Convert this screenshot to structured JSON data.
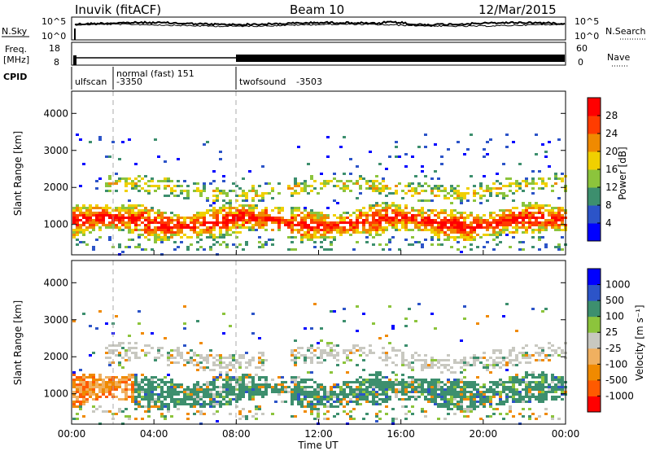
{
  "header": {
    "station": "Inuvik (fitACF)",
    "beam": "Beam 10",
    "date": "12/Mar/2015"
  },
  "noise_panel": {
    "left_label": "N.Sky",
    "right_label": "N.Search",
    "left_ticks": [
      "10^5",
      "10^0"
    ],
    "right_ticks": [
      "10^5",
      "10^0"
    ]
  },
  "freq_panel": {
    "left_label_line1": "Freq.",
    "left_label_line2": "[MHz]",
    "left_ticks": [
      "18",
      "8"
    ],
    "right_label": "Nave",
    "right_ticks": [
      "60",
      "0"
    ]
  },
  "cpid": {
    "label": "CPID",
    "segments": [
      {
        "start_hour": 0.0,
        "name": "ulfscan",
        "id": ""
      },
      {
        "start_hour": 2.0,
        "name": "normal (fast) 151",
        "id": "-3350"
      },
      {
        "start_hour": 8.0,
        "name": "twofsound",
        "id": "-3503"
      }
    ]
  },
  "chart_data": [
    {
      "type": "heatmap",
      "title": "",
      "ylabel": "Slant Range [km]",
      "xlabel": "",
      "x_range_hours": [
        0,
        24
      ],
      "ylim": [
        180,
        4600
      ],
      "y_ticks": [
        "1000",
        "2000",
        "3000",
        "4000"
      ],
      "colorbar": {
        "label": "Power [dB]",
        "ticks": [
          "28",
          "24",
          "20",
          "16",
          "12",
          "8",
          "4"
        ],
        "colors": [
          "#0000ff",
          "#2c54c8",
          "#3d8f6e",
          "#8cc43c",
          "#f0d000",
          "#f08a00",
          "#ff3c00",
          "#ff0000"
        ]
      },
      "features": {
        "main_band_km": [
          750,
          1600
        ],
        "secondary_band_km": [
          1700,
          2400
        ],
        "peak_power_db": 30
      }
    },
    {
      "type": "heatmap",
      "title": "",
      "ylabel": "Slant Range [km]",
      "xlabel": "Time UT",
      "x_range_hours": [
        0,
        24
      ],
      "x_ticks": [
        "00:00",
        "04:00",
        "08:00",
        "12:00",
        "16:00",
        "20:00",
        "00:00"
      ],
      "ylim": [
        180,
        4600
      ],
      "y_ticks": [
        "1000",
        "2000",
        "3000",
        "4000"
      ],
      "colorbar": {
        "label": "Velocity [m s⁻¹]",
        "ticks": [
          "1000",
          "500",
          "100",
          "25",
          "-25",
          "-100",
          "-500",
          "-1000"
        ],
        "colors": [
          "#ff0000",
          "#ff5a00",
          "#f08a00",
          "#f0b060",
          "#c8c8c0",
          "#8cc43c",
          "#3d8f6e",
          "#2c54c8",
          "#0000ff"
        ]
      }
    }
  ],
  "colors": {
    "power_red": "#ff2200",
    "velocity_green": "#3d8f6e",
    "velocity_gray": "#c8c8c0",
    "velocity_orange": "#f08a00"
  }
}
